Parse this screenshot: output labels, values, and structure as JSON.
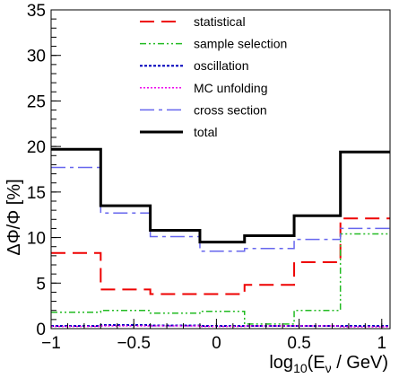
{
  "chart_data": {
    "type": "line",
    "style": "step-histogram",
    "title": "",
    "xlabel": {
      "main": "log",
      "sub": "10",
      "mid": "(E",
      "nu": "ν",
      "tail": " / GeV)"
    },
    "ylabel": "ΔΦ/Φ [%]",
    "xlim": [
      -1.0,
      1.05
    ],
    "ylim": [
      0,
      35
    ],
    "grid": false,
    "legend_position": "top-center",
    "x_ticks": [
      {
        "value": -1,
        "label": "−1"
      },
      {
        "value": -0.5,
        "label": "−0.5"
      },
      {
        "value": 0,
        "label": "0"
      },
      {
        "value": 0.5,
        "label": "0.5"
      },
      {
        "value": 1,
        "label": "1"
      }
    ],
    "y_ticks": [
      {
        "value": 0,
        "label": "0"
      },
      {
        "value": 5,
        "label": "5"
      },
      {
        "value": 10,
        "label": "10"
      },
      {
        "value": 15,
        "label": "15"
      },
      {
        "value": 20,
        "label": "20"
      },
      {
        "value": 25,
        "label": "25"
      },
      {
        "value": 30,
        "label": "30"
      },
      {
        "value": 35,
        "label": "35"
      }
    ],
    "bin_edges": [
      -1.0,
      -0.7,
      -0.4,
      -0.1,
      0.17,
      0.47,
      0.75,
      1.05
    ],
    "series": [
      {
        "name": "statistical",
        "color": "#ee0000",
        "dash": "16,8",
        "width": 2,
        "values": [
          8.3,
          4.3,
          3.8,
          3.8,
          4.8,
          7.3,
          12.1
        ]
      },
      {
        "name": "sample selection",
        "color": "#22bb22",
        "dash": "7,3,2,3,2,3",
        "width": 1.5,
        "values": [
          1.8,
          2.0,
          1.7,
          1.9,
          0.5,
          2.0,
          10.4
        ]
      },
      {
        "name": "oscillation",
        "color": "#0000bb",
        "dash": "3,2",
        "width": 2,
        "values": [
          0.3,
          0.4,
          0.35,
          0.3,
          0.3,
          0.3,
          0.3
        ]
      },
      {
        "name": "MC unfolding",
        "color": "#ee00ee",
        "dash": "2,2",
        "width": 1.5,
        "values": [
          0.25,
          0.3,
          0.3,
          0.25,
          0.3,
          0.3,
          0.2
        ]
      },
      {
        "name": "cross section",
        "color": "#6666ee",
        "dash": "16,5,4,5",
        "width": 1.5,
        "values": [
          17.7,
          12.7,
          10.1,
          8.5,
          8.8,
          9.8,
          11.0
        ]
      },
      {
        "name": "total",
        "color": "#000000",
        "dash": "",
        "width": 3,
        "values": [
          19.7,
          13.5,
          10.8,
          9.5,
          10.2,
          12.4,
          19.4
        ]
      }
    ]
  }
}
